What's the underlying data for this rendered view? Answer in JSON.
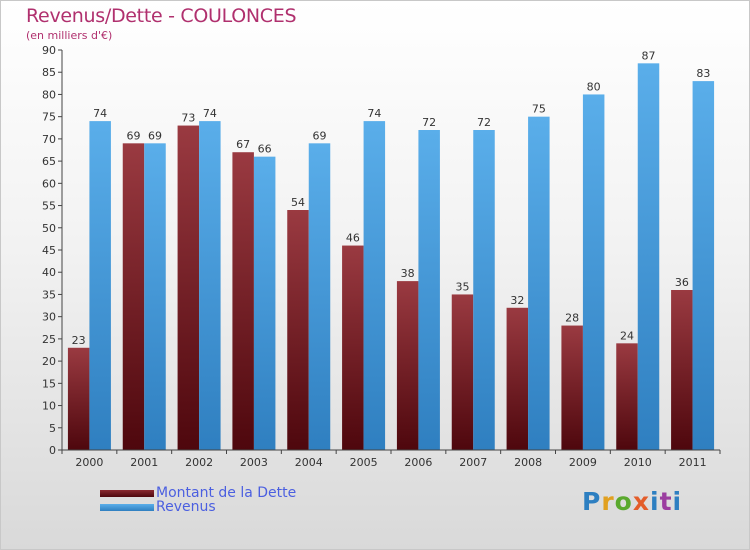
{
  "title": "Revenus/Dette - COULONCES",
  "subtitle": "(en milliers d'€)",
  "logo_text": "Proxiti",
  "chart_data": {
    "type": "bar",
    "title": "Revenus/Dette - COULONCES",
    "subtitle": "(en milliers d'€)",
    "xlabel": "",
    "ylabel": "",
    "ylim": [
      0,
      90
    ],
    "ytick_step": 5,
    "grid": false,
    "legend_position": "bottom-left",
    "categories": [
      "2000",
      "2001",
      "2002",
      "2003",
      "2004",
      "2005",
      "2006",
      "2007",
      "2008",
      "2009",
      "2010",
      "2011"
    ],
    "series": [
      {
        "name": "Montant de la Dette",
        "color": "#7a1c24",
        "values": [
          23,
          69,
          73,
          67,
          54,
          46,
          38,
          35,
          32,
          28,
          24,
          36
        ]
      },
      {
        "name": "Revenus",
        "color": "#4a9fe0",
        "values": [
          74,
          69,
          74,
          66,
          69,
          74,
          72,
          72,
          75,
          80,
          87,
          83
        ]
      }
    ]
  }
}
